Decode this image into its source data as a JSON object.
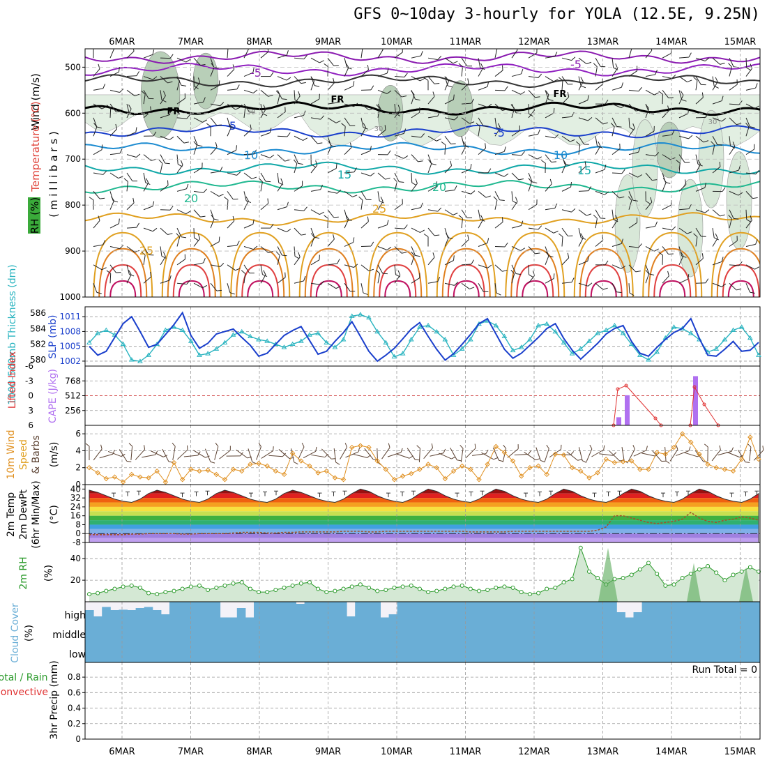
{
  "title": "GFS 0~10day 3-hourly for YOLA (12.5E, 9.25N)",
  "date_labels": [
    "6MAR",
    "7MAR",
    "8MAR",
    "9MAR",
    "10MAR",
    "11MAR",
    "12MAR",
    "13MAR",
    "14MAR",
    "15MAR"
  ],
  "colors": {
    "frame": "#000000",
    "grid": "#999999",
    "slp": "#1a3fcc",
    "thickness": "#2ab4c0",
    "rh_fill": "#c8e2c8",
    "cape": "#b070f0",
    "lifted_index": "#e03030",
    "wind_speed": "#e09020",
    "barb": "#5a4030",
    "rh2m": "#2a9a2a",
    "cloud": "#6aaed6",
    "dewpoint": "#a0522d"
  },
  "panels": {
    "upper_air": {
      "ylabel_wind": "Wind (m/s)",
      "ylabel_temp": "Temperature (°C)",
      "ylabel_rh": "RH (%)",
      "ylabel_pressure": "( m i l l i b a r s )",
      "y_ticks": [
        "500",
        "600",
        "700",
        "800",
        "900",
        "1000"
      ],
      "freezing_label": "FR",
      "rh_labels": [
        "30",
        "30",
        "30",
        "30"
      ],
      "temp_labels": [
        "-5",
        "-5",
        "5",
        "-5",
        "10",
        "10",
        "15",
        "15",
        "20",
        "20",
        "25",
        "25"
      ]
    },
    "slp_thickness": {
      "ylabel_left": "1000-500mb Thickness (dm)",
      "ylabel_right": "SLP (mb)",
      "left_ticks": [
        "586",
        "584",
        "582",
        "580"
      ],
      "right_ticks": [
        "1011",
        "1008",
        "1005",
        "1002"
      ]
    },
    "cape_li": {
      "ylabel_left": "Lifted Index",
      "ylabel_right": "CAPE (J/kg)",
      "li_ticks": [
        "-6",
        "-3",
        "0",
        "3",
        "6"
      ],
      "cape_ticks": [
        "768",
        "512",
        "256"
      ]
    },
    "wind10m": {
      "ylabel1": "10m Wind",
      "ylabel2": "Speed",
      "ylabel3": "& Barbs",
      "unit": "(m/s)",
      "ticks": [
        "6",
        "4",
        "2",
        "0"
      ]
    },
    "temp2m": {
      "ylabel1": "2m Temp",
      "ylabel2": "2m DewPt",
      "ylabel3": "(6hr Min/Max)",
      "unit": "(°C)",
      "ticks": [
        "40",
        "32",
        "24",
        "16",
        "8",
        "0",
        "-8"
      ]
    },
    "rh2m": {
      "ylabel": "2m RH",
      "unit": "(%)",
      "ticks": [
        "40",
        "20"
      ]
    },
    "cloud": {
      "ylabel": "Cloud Cover",
      "unit": "(%)",
      "levels": [
        "high",
        "middle",
        "low"
      ]
    },
    "precip": {
      "ylabel1": "Total / Rain",
      "ylabel2": "Convective",
      "ylabel3": "3hr Precip (mm)",
      "ticks": [
        "0.8",
        "0.6",
        "0.4",
        "0.2",
        "0"
      ],
      "run_total": "Run Total = 0"
    }
  },
  "chart_data": [
    {
      "type": "line",
      "name": "sea level pressure",
      "unit": "mb",
      "ylim": [
        1001,
        1013
      ],
      "values": [
        1005.0,
        1003.2,
        1004.0,
        1006.8,
        1009.6,
        1011.0,
        1008.0,
        1004.8,
        1005.4,
        1007.4,
        1009.4,
        1011.8,
        1007.2,
        1004.6,
        1005.6,
        1007.5,
        1008.0,
        1008.5,
        1006.8,
        1005.2,
        1003.0,
        1003.6,
        1005.4,
        1007.2,
        1008.2,
        1009.0,
        1006.2,
        1003.4,
        1004.0,
        1006.0,
        1007.8,
        1010.0,
        1007.0,
        1004.0,
        1002.0,
        1003.2,
        1004.6,
        1006.5,
        1008.5,
        1009.8,
        1007.0,
        1004.4,
        1002.2,
        1003.5,
        1005.4,
        1007.4,
        1009.6,
        1010.6,
        1007.5,
        1004.4,
        1002.6,
        1003.6,
        1005.2,
        1006.8,
        1008.6,
        1009.6,
        1006.6,
        1004.2,
        1002.4,
        1004.0,
        1005.6,
        1007.5,
        1008.6,
        1009.2,
        1006.0,
        1003.6,
        1003.0,
        1004.8,
        1006.4,
        1007.8,
        1008.6,
        1010.6,
        1006.6,
        1003.2,
        1003.0,
        1004.4,
        1006.0,
        1004.0,
        1004.2,
        1005.8
      ]
    },
    {
      "type": "line",
      "name": "1000-500mb thickness",
      "unit": "dm",
      "ylim": [
        579.2,
        586.8
      ],
      "values": [
        582.2,
        583.4,
        583.8,
        583.2,
        582.0,
        580.0,
        579.8,
        580.6,
        582.0,
        583.8,
        584.2,
        583.8,
        582.4,
        580.6,
        580.8,
        581.4,
        582.2,
        583.2,
        583.6,
        583.0,
        582.6,
        582.4,
        582.0,
        581.6,
        582.0,
        582.4,
        583.2,
        583.4,
        582.2,
        581.6,
        582.6,
        585.6,
        585.8,
        585.4,
        583.6,
        582.2,
        580.4,
        580.8,
        582.6,
        584.2,
        584.4,
        583.6,
        582.6,
        580.6,
        581.4,
        582.6,
        584.6,
        585.0,
        584.4,
        583.0,
        581.2,
        581.6,
        582.6,
        584.4,
        584.6,
        583.6,
        582.2,
        580.8,
        581.4,
        582.4,
        583.4,
        583.8,
        584.4,
        583.4,
        582.0,
        580.6,
        580.0,
        581.0,
        582.8,
        584.2,
        584.0,
        583.4,
        582.6,
        581.0,
        581.4,
        582.6,
        583.8,
        584.2,
        582.8,
        580.6
      ]
    },
    {
      "type": "line",
      "name": "10m wind speed",
      "unit": "m/s",
      "ylim": [
        0,
        7
      ],
      "values": [
        2.0,
        1.4,
        0.7,
        0.9,
        0.3,
        1.2,
        0.9,
        0.8,
        1.6,
        0.3,
        2.6,
        0.6,
        1.8,
        1.6,
        1.7,
        1.2,
        0.6,
        1.8,
        1.6,
        2.4,
        2.5,
        2.2,
        1.6,
        1.2,
        3.7,
        2.8,
        2.2,
        1.4,
        1.6,
        0.8,
        0.6,
        4.4,
        4.6,
        4.4,
        2.8,
        1.8,
        0.6,
        1.0,
        1.3,
        1.8,
        2.4,
        2.0,
        0.7,
        1.6,
        2.2,
        1.8,
        0.6,
        2.4,
        4.5,
        3.8,
        2.8,
        1.0,
        2.0,
        2.2,
        1.2,
        3.6,
        3.5,
        2.0,
        1.6,
        0.8,
        1.4,
        3.0,
        2.6,
        2.7,
        2.8,
        1.8,
        1.8,
        3.8,
        3.6,
        4.4,
        6.0,
        5.0,
        3.6,
        2.4,
        2.0,
        1.8,
        1.6,
        3.0,
        5.6,
        3.0
      ]
    },
    {
      "type": "line",
      "name": "2m temperature",
      "unit": "°C",
      "ylim": [
        -8,
        44
      ],
      "values": [
        39,
        37,
        34,
        31,
        29,
        28,
        31,
        36,
        39,
        37,
        34,
        31,
        29,
        28,
        31,
        36,
        39,
        37,
        34,
        31,
        29,
        28,
        31,
        36,
        39,
        37,
        34,
        31,
        29,
        28,
        31,
        36,
        40,
        38,
        34,
        31,
        29,
        28,
        31,
        36,
        40,
        38,
        34,
        31,
        29,
        28,
        31,
        36,
        40,
        38,
        34,
        31,
        29,
        28,
        31,
        36,
        40,
        38,
        34,
        31,
        29,
        28,
        31,
        36,
        40,
        38,
        34,
        31,
        29,
        28,
        31,
        36,
        40,
        38,
        34,
        31,
        29,
        28,
        31,
        36
      ]
    },
    {
      "type": "line",
      "name": "2m dew point",
      "unit": "°C",
      "ylim": [
        -8,
        44
      ],
      "values": [
        -1,
        -1,
        -1,
        -1,
        -1,
        -0.5,
        -0.5,
        0,
        0,
        0,
        0,
        -0.5,
        -0.5,
        0,
        0,
        0,
        0,
        0.5,
        1,
        1,
        1,
        0.5,
        0.5,
        1,
        1,
        1.5,
        1.5,
        1.5,
        1.5,
        1.5,
        2,
        2,
        2,
        1.5,
        1.5,
        2,
        2,
        2,
        2,
        2,
        2,
        2,
        2,
        2,
        2,
        1.5,
        1.5,
        1.5,
        1.5,
        1.5,
        2,
        2,
        2,
        2,
        2,
        2,
        2,
        2,
        2,
        2,
        3,
        6,
        16,
        16,
        14,
        12,
        10,
        9,
        10,
        11,
        13,
        19,
        14,
        11,
        10,
        12,
        13,
        15,
        14,
        12
      ]
    },
    {
      "type": "area",
      "name": "2m relative humidity",
      "unit": "%",
      "ylim": [
        0,
        55
      ],
      "values": [
        7,
        8,
        10,
        12,
        14,
        15,
        13,
        8,
        7,
        9,
        10,
        12,
        14,
        15,
        11,
        13,
        15,
        17,
        18,
        12,
        9,
        9,
        11,
        13,
        15,
        17,
        18,
        12,
        9,
        10,
        12,
        14,
        16,
        13,
        10,
        11,
        13,
        14,
        15,
        12,
        9,
        10,
        12,
        14,
        15,
        12,
        10,
        11,
        13,
        14,
        13,
        9,
        7,
        8,
        12,
        13,
        18,
        21,
        50,
        28,
        22,
        16,
        21,
        22,
        25,
        30,
        36,
        26,
        15,
        16,
        22,
        26,
        30,
        33,
        27,
        20,
        25,
        28,
        32,
        28
      ]
    },
    {
      "type": "bar",
      "name": "CAPE",
      "unit": "J/kg",
      "ylim": [
        0,
        1024
      ],
      "values": [
        0,
        0,
        0,
        0,
        0,
        0,
        0,
        0,
        0,
        0,
        0,
        0,
        0,
        0,
        0,
        0,
        0,
        0,
        0,
        0,
        0,
        0,
        0,
        0,
        0,
        0,
        0,
        0,
        0,
        0,
        0,
        0,
        0,
        0,
        0,
        0,
        0,
        0,
        0,
        0,
        0,
        0,
        0,
        0,
        0,
        0,
        0,
        0,
        0,
        0,
        0,
        0,
        0,
        0,
        0,
        0,
        0,
        0,
        0,
        0,
        0,
        0,
        0,
        0,
        0,
        0,
        0,
        0,
        0,
        0,
        0,
        180,
        640,
        0,
        0,
        0,
        0,
        0,
        0,
        0
      ]
    },
    {
      "type": "bar",
      "name": "cloud cover high",
      "unit": "%",
      "ylim": [
        0,
        100
      ],
      "values": [
        60,
        30,
        75,
        60,
        62,
        60,
        70,
        75,
        60,
        40,
        100,
        100,
        100,
        100,
        100,
        100,
        25,
        25,
        70,
        25,
        100,
        100,
        100,
        100,
        100,
        90,
        100,
        100,
        100,
        100,
        100,
        30,
        100,
        100,
        100,
        25,
        40,
        100,
        100,
        100,
        100,
        100,
        100,
        100,
        100,
        100,
        100,
        100,
        100,
        100,
        100,
        100,
        100,
        100,
        100,
        100,
        100,
        100,
        100,
        100,
        100,
        100,
        100,
        50,
        25,
        50,
        100,
        100,
        100,
        100,
        100,
        100,
        100,
        100,
        100,
        100,
        100,
        100,
        100,
        100
      ]
    },
    {
      "type": "bar",
      "name": "cloud cover middle",
      "unit": "%",
      "ylim": [
        0,
        100
      ],
      "values": [
        100,
        100,
        100,
        100,
        100,
        100,
        100,
        100,
        100,
        100,
        100,
        100,
        100,
        100,
        100,
        100,
        100,
        100,
        100,
        100,
        100,
        100,
        100,
        100,
        100,
        100,
        100,
        100,
        100,
        100,
        100,
        100,
        100,
        100,
        100,
        100,
        100,
        100,
        100,
        100,
        100,
        100,
        100,
        100,
        100,
        100,
        100,
        100,
        100,
        100,
        100,
        100,
        100,
        100,
        100,
        100,
        100,
        100,
        100,
        100,
        100,
        100,
        100,
        100,
        100,
        100,
        100,
        100,
        100,
        100,
        100,
        100,
        100,
        100,
        100,
        100,
        100,
        100,
        100,
        100
      ]
    },
    {
      "type": "bar",
      "name": "3hr precipitation",
      "unit": "mm",
      "ylim": [
        0,
        1
      ],
      "values": []
    }
  ]
}
